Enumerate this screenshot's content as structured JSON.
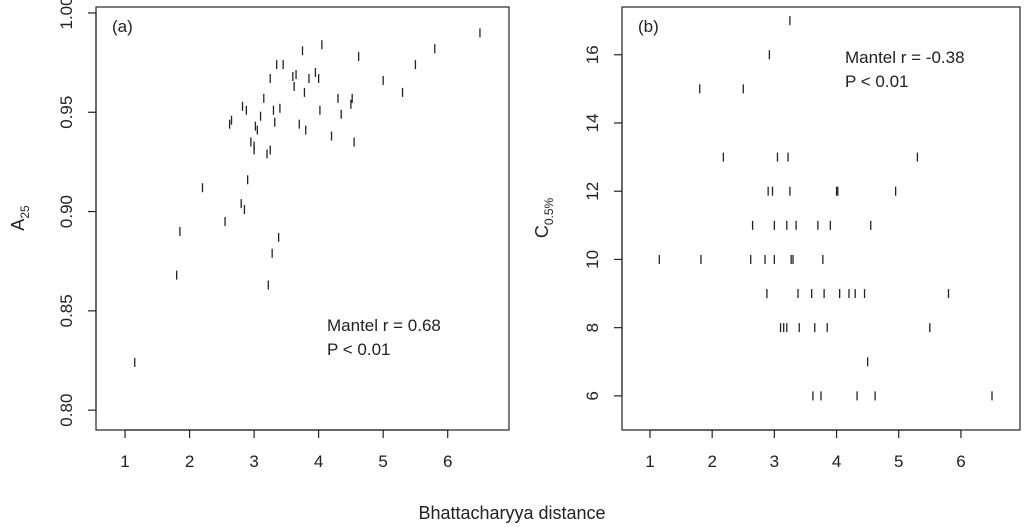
{
  "figure": {
    "shared_xlabel": "Bhattacharyya distance",
    "colors": {
      "mark": "#222222",
      "axis": "#222222",
      "background": "#ffffff"
    }
  },
  "chart_data": [
    {
      "type": "scatter",
      "panel_label": "(a)",
      "ylabel_main": "A",
      "ylabel_sub": "25",
      "xlabel": "Bhattacharyya distance",
      "xlim": [
        0.55,
        6.95
      ],
      "ylim": [
        0.79,
        1.003
      ],
      "xticks": [
        1,
        2,
        3,
        4,
        5,
        6
      ],
      "yticks": [
        "0.80",
        "0.85",
        "0.90",
        "0.95",
        "1.00"
      ],
      "marker": "vertical tick",
      "annotation": [
        "Mantel r = 0.68",
        "P < 0.01"
      ],
      "x": [
        1.15,
        1.8,
        1.85,
        2.2,
        2.55,
        2.62,
        2.65,
        2.8,
        2.82,
        2.85,
        2.88,
        2.9,
        2.95,
        3.0,
        3.0,
        3.02,
        3.05,
        3.1,
        3.15,
        3.2,
        3.22,
        3.25,
        3.25,
        3.28,
        3.3,
        3.32,
        3.35,
        3.38,
        3.4,
        3.45,
        3.6,
        3.62,
        3.65,
        3.7,
        3.75,
        3.78,
        3.8,
        3.85,
        3.95,
        4.0,
        4.02,
        4.05,
        4.2,
        4.3,
        4.35,
        4.5,
        4.52,
        4.55,
        4.62,
        5.0,
        5.3,
        5.5,
        5.8,
        6.5
      ],
      "y": [
        0.824,
        0.868,
        0.89,
        0.912,
        0.895,
        0.944,
        0.946,
        0.904,
        0.953,
        0.901,
        0.951,
        0.916,
        0.935,
        0.933,
        0.931,
        0.943,
        0.941,
        0.948,
        0.957,
        0.929,
        0.863,
        0.931,
        0.967,
        0.879,
        0.951,
        0.945,
        0.974,
        0.887,
        0.952,
        0.974,
        0.968,
        0.963,
        0.969,
        0.944,
        0.981,
        0.96,
        0.941,
        0.967,
        0.97,
        0.967,
        0.951,
        0.984,
        0.938,
        0.957,
        0.949,
        0.954,
        0.957,
        0.935,
        0.978,
        0.966,
        0.96,
        0.974,
        0.982,
        0.99
      ]
    },
    {
      "type": "scatter",
      "panel_label": "(b)",
      "ylabel_main": "C",
      "ylabel_sub": "0.5%",
      "xlabel": "Bhattacharyya distance",
      "xlim": [
        0.55,
        6.95
      ],
      "ylim": [
        5.0,
        17.4
      ],
      "xticks": [
        1,
        2,
        3,
        4,
        5,
        6
      ],
      "yticks": [
        "6",
        "8",
        "10",
        "12",
        "14",
        "16"
      ],
      "marker": "vertical tick",
      "annotation": [
        "Mantel r = -0.38",
        "P < 0.01"
      ],
      "x": [
        1.15,
        1.8,
        1.82,
        2.18,
        2.5,
        2.62,
        2.65,
        2.85,
        2.88,
        2.9,
        2.92,
        2.97,
        3.0,
        3.0,
        3.05,
        3.1,
        3.15,
        3.2,
        3.2,
        3.22,
        3.25,
        3.25,
        3.27,
        3.3,
        3.35,
        3.38,
        3.4,
        3.6,
        3.62,
        3.65,
        3.7,
        3.75,
        3.78,
        3.8,
        3.85,
        3.9,
        4.0,
        4.02,
        4.05,
        4.2,
        4.3,
        4.33,
        4.45,
        4.5,
        4.55,
        4.62,
        4.95,
        5.3,
        5.5,
        5.8,
        6.5
      ],
      "y": [
        10,
        15,
        10,
        13,
        15,
        10,
        11,
        10,
        9,
        12,
        16,
        12,
        11,
        10,
        13,
        8,
        8,
        8,
        11,
        13,
        12,
        17,
        10,
        10,
        11,
        9,
        8,
        9,
        6,
        8,
        11,
        6,
        10,
        9,
        8,
        11,
        12,
        12,
        9,
        9,
        9,
        6,
        9,
        7,
        11,
        6,
        12,
        13,
        8,
        9,
        6
      ]
    }
  ]
}
